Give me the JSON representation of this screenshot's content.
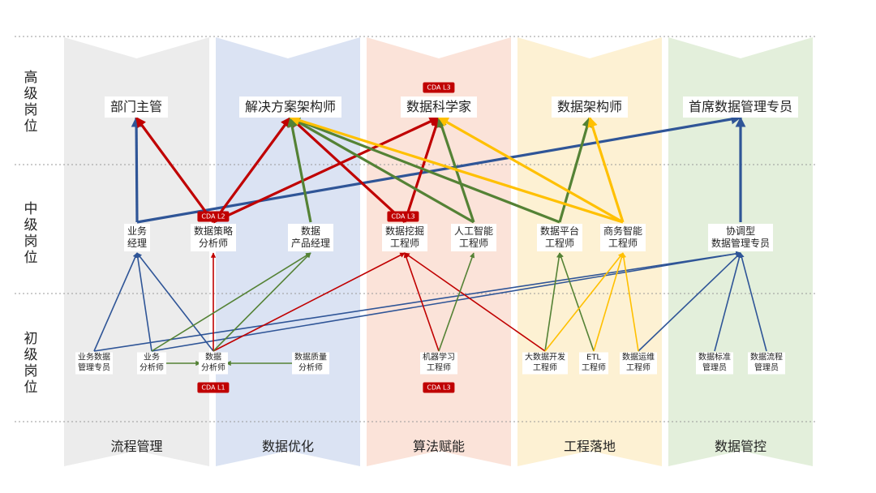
{
  "levels": [
    {
      "id": "senior",
      "label": "高\n级\n岗\n位"
    },
    {
      "id": "mid",
      "label": "中\n级\n岗\n位"
    },
    {
      "id": "junior",
      "label": "初\n级\n岗\n位"
    }
  ],
  "domains": [
    {
      "id": "process",
      "label": "流程管理",
      "color": "#ececec"
    },
    {
      "id": "optimize",
      "label": "数据优化",
      "color": "#dbe3f3"
    },
    {
      "id": "algorithm",
      "label": "算法赋能",
      "color": "#fbe3d9"
    },
    {
      "id": "engineering",
      "label": "工程落地",
      "color": "#fdf1d3"
    },
    {
      "id": "governance",
      "label": "数据管控",
      "color": "#e3efdb"
    }
  ],
  "nodes": [
    {
      "id": "s1",
      "level": "senior",
      "text": "部门主管"
    },
    {
      "id": "s2",
      "level": "senior",
      "text": "解决方案架构师"
    },
    {
      "id": "s3",
      "level": "senior",
      "text": "数据科学家"
    },
    {
      "id": "s4",
      "level": "senior",
      "text": "数据架构师"
    },
    {
      "id": "s5",
      "level": "senior",
      "text": "首席数据管理专员"
    },
    {
      "id": "m1",
      "level": "mid",
      "text": "业务\n经理"
    },
    {
      "id": "m2",
      "level": "mid",
      "text": "数据策略\n分析师"
    },
    {
      "id": "m3",
      "level": "mid",
      "text": "数据\n产品经理"
    },
    {
      "id": "m4",
      "level": "mid",
      "text": "数据挖掘\n工程师"
    },
    {
      "id": "m5",
      "level": "mid",
      "text": "人工智能\n工程师"
    },
    {
      "id": "m6",
      "level": "mid",
      "text": "数据平台\n工程师"
    },
    {
      "id": "m7",
      "level": "mid",
      "text": "商务智能\n工程师"
    },
    {
      "id": "m8",
      "level": "mid",
      "text": "协调型\n数据管理专员"
    },
    {
      "id": "j1",
      "level": "junior",
      "text": "业务数据\n管理专员"
    },
    {
      "id": "j2",
      "level": "junior",
      "text": "业务\n分析师"
    },
    {
      "id": "j3",
      "level": "junior",
      "text": "数据\n分析师"
    },
    {
      "id": "j4",
      "level": "junior",
      "text": "数据质量\n分析师"
    },
    {
      "id": "j5",
      "level": "junior",
      "text": "机器学习\n工程师"
    },
    {
      "id": "j6",
      "level": "junior",
      "text": "大数据开发\n工程师"
    },
    {
      "id": "j7",
      "level": "junior",
      "text": "ETL\n工程师"
    },
    {
      "id": "j8",
      "level": "junior",
      "text": "数据运维\n工程师"
    },
    {
      "id": "j9",
      "level": "junior",
      "text": "数据标准\n管理员"
    },
    {
      "id": "j10",
      "level": "junior",
      "text": "数据流程\n管理员"
    }
  ],
  "badges": [
    {
      "id": "b_s3",
      "text": "CDA L3"
    },
    {
      "id": "b_m2",
      "text": "CDA L2"
    },
    {
      "id": "b_m4",
      "text": "CDA L3"
    },
    {
      "id": "b_j3",
      "text": "CDA L1"
    },
    {
      "id": "b_j5",
      "text": "CDA L3"
    }
  ],
  "edge_colors": {
    "blue": "#2f5597",
    "red": "#c00000",
    "green": "#548235",
    "yellow": "#ffc000"
  },
  "edges": [
    {
      "from": "m1",
      "to": "s1",
      "color": "blue",
      "bold": true
    },
    {
      "from": "m1",
      "to": "s5",
      "color": "blue",
      "bold": true
    },
    {
      "from": "m8",
      "to": "s5",
      "color": "blue",
      "bold": true
    },
    {
      "from": "m2",
      "to": "s1",
      "color": "red",
      "bold": true
    },
    {
      "from": "m2",
      "to": "s2",
      "color": "red",
      "bold": true
    },
    {
      "from": "m2",
      "to": "s3",
      "color": "red",
      "bold": true
    },
    {
      "from": "m4",
      "to": "s2",
      "color": "red",
      "bold": true
    },
    {
      "from": "m4",
      "to": "s3",
      "color": "red",
      "bold": true
    },
    {
      "from": "m3",
      "to": "s2",
      "color": "green",
      "bold": true
    },
    {
      "from": "m5",
      "to": "s2",
      "color": "green",
      "bold": true
    },
    {
      "from": "m5",
      "to": "s3",
      "color": "green",
      "bold": true
    },
    {
      "from": "m6",
      "to": "s2",
      "color": "green",
      "bold": true
    },
    {
      "from": "m6",
      "to": "s4",
      "color": "green",
      "bold": true
    },
    {
      "from": "m7",
      "to": "s2",
      "color": "yellow",
      "bold": true
    },
    {
      "from": "m7",
      "to": "s3",
      "color": "yellow",
      "bold": true
    },
    {
      "from": "m7",
      "to": "s4",
      "color": "yellow",
      "bold": true
    },
    {
      "from": "j1",
      "to": "m1",
      "color": "blue",
      "bold": false
    },
    {
      "from": "j2",
      "to": "m1",
      "color": "blue",
      "bold": false
    },
    {
      "from": "j3",
      "to": "m1",
      "color": "blue",
      "bold": false
    },
    {
      "from": "j1",
      "to": "m8",
      "color": "blue",
      "bold": false
    },
    {
      "from": "j2",
      "to": "m8",
      "color": "blue",
      "bold": false
    },
    {
      "from": "j8",
      "to": "m8",
      "color": "blue",
      "bold": false
    },
    {
      "from": "j9",
      "to": "m8",
      "color": "blue",
      "bold": false
    },
    {
      "from": "j10",
      "to": "m8",
      "color": "blue",
      "bold": false
    },
    {
      "from": "j3",
      "to": "m2",
      "color": "red",
      "bold": false
    },
    {
      "from": "j3",
      "to": "m4",
      "color": "red",
      "bold": false
    },
    {
      "from": "j5",
      "to": "m4",
      "color": "red",
      "bold": false
    },
    {
      "from": "j6",
      "to": "m4",
      "color": "red",
      "bold": false
    },
    {
      "from": "j2",
      "to": "j3",
      "color": "green",
      "bold": false
    },
    {
      "from": "j4",
      "to": "j3",
      "color": "green",
      "bold": false
    },
    {
      "from": "j2",
      "to": "m3",
      "color": "green",
      "bold": false
    },
    {
      "from": "j3",
      "to": "m3",
      "color": "green",
      "bold": false
    },
    {
      "from": "j5",
      "to": "m5",
      "color": "green",
      "bold": false
    },
    {
      "from": "j6",
      "to": "m6",
      "color": "green",
      "bold": false
    },
    {
      "from": "j7",
      "to": "m6",
      "color": "green",
      "bold": false
    },
    {
      "from": "j6",
      "to": "m7",
      "color": "yellow",
      "bold": false
    },
    {
      "from": "j7",
      "to": "m7",
      "color": "yellow",
      "bold": false
    },
    {
      "from": "j8",
      "to": "m7",
      "color": "yellow",
      "bold": false
    }
  ]
}
